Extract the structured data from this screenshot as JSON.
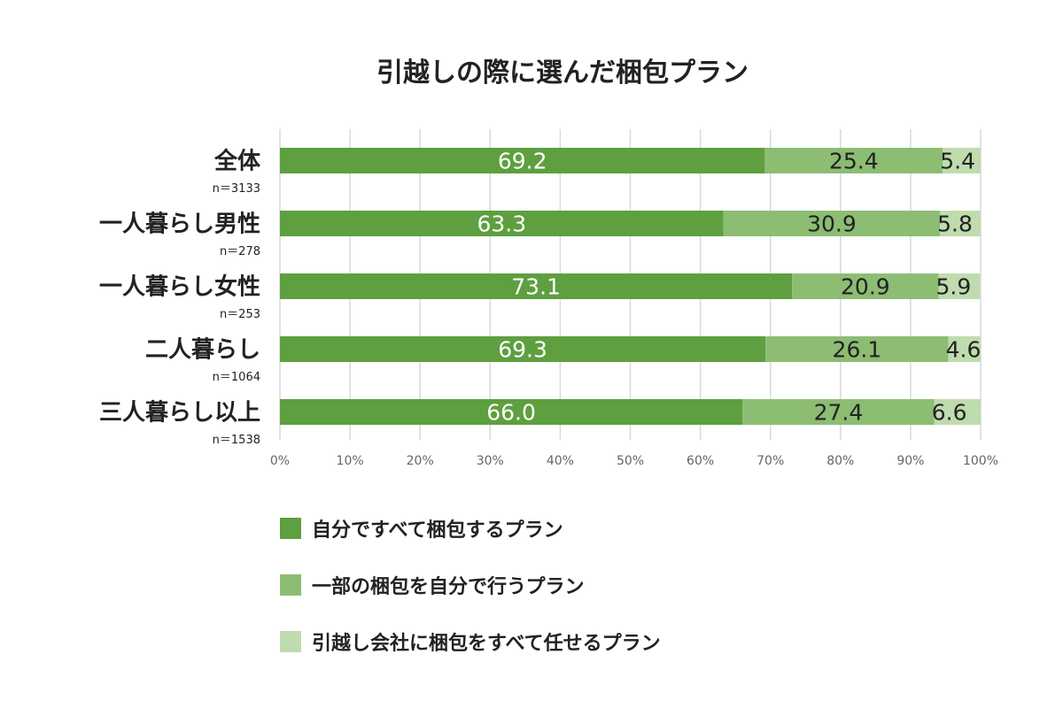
{
  "chart_data": {
    "type": "bar",
    "orientation": "horizontal",
    "stacked": true,
    "title": "引越しの際に選んだ梱包プラン",
    "categories": [
      "全体",
      "一人暮らし男性",
      "一人暮らし女性",
      "二人暮らし",
      "三人暮らし以上"
    ],
    "sample_sizes": [
      "n＝3133",
      "n＝278",
      "n＝253",
      "n＝1064",
      "n＝1538"
    ],
    "series": [
      {
        "name": "自分ですべて梱包するプラン",
        "color": "#5e9f3f",
        "label_color": "#ffffff",
        "values": [
          69.2,
          63.3,
          73.1,
          69.3,
          66.0
        ],
        "labels": [
          "69.2",
          "63.3",
          "73.1",
          "69.3",
          "66.0"
        ]
      },
      {
        "name": "一部の梱包を自分で行うプラン",
        "color": "#8cbd73",
        "label_color": "#222222",
        "values": [
          25.4,
          30.9,
          20.9,
          26.1,
          27.4
        ],
        "labels": [
          "25.4",
          "30.9",
          "20.9",
          "26.1",
          "27.4"
        ]
      },
      {
        "name": "引越し会社に梱包をすべて任せるプラン",
        "color": "#bfdcae",
        "label_color": "#222222",
        "values": [
          5.4,
          5.8,
          5.9,
          4.6,
          6.6
        ],
        "labels": [
          "5.4",
          "5.8",
          "5.9",
          "4.6",
          "6.6"
        ]
      }
    ],
    "x_ticks": [
      "0%",
      "10%",
      "20%",
      "30%",
      "40%",
      "50%",
      "60%",
      "70%",
      "80%",
      "90%",
      "100%"
    ],
    "xlim": [
      0,
      100
    ],
    "grid": true,
    "legend_position": "bottom"
  }
}
